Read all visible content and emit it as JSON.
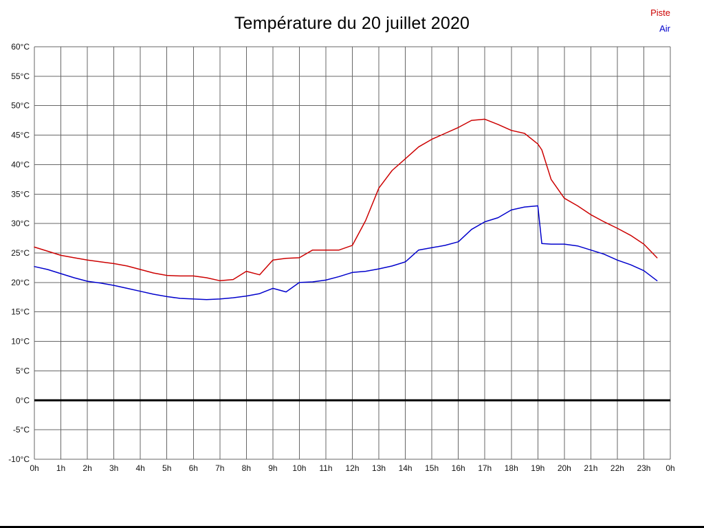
{
  "chart_data": {
    "type": "line",
    "title": "Température du 20 juillet 2020",
    "xlabel": "",
    "ylabel": "",
    "xlim": [
      0,
      24
    ],
    "ylim": [
      -10,
      60
    ],
    "grid": true,
    "legend_position": "top-right",
    "grid_color": "#666666",
    "zero_line": {
      "value": 0,
      "color": "#000000",
      "width": 3
    },
    "y_tick_values": [
      60,
      55,
      50,
      45,
      40,
      35,
      30,
      25,
      20,
      15,
      10,
      5,
      0,
      -5,
      -10
    ],
    "y_tick_labels": [
      "60°C",
      "55°C",
      "50°C",
      "45°C",
      "40°C",
      "35°C",
      "30°C",
      "25°C",
      "20°C",
      "15°C",
      "10°C",
      "5°C",
      "0°C",
      "-5°C",
      "-10°C"
    ],
    "x_tick_labels": [
      "0h",
      "1h",
      "2h",
      "3h",
      "4h",
      "5h",
      "6h",
      "7h",
      "8h",
      "9h",
      "10h",
      "11h",
      "12h",
      "13h",
      "14h",
      "15h",
      "16h",
      "17h",
      "18h",
      "19h",
      "20h",
      "21h",
      "22h",
      "23h",
      "0h"
    ],
    "x": [
      0,
      0.5,
      1,
      1.5,
      2,
      2.5,
      3,
      3.5,
      4,
      4.5,
      5,
      5.5,
      6,
      6.5,
      7,
      7.5,
      8,
      8.5,
      9,
      9.5,
      10,
      10.5,
      11,
      11.5,
      12,
      12.5,
      13,
      13.5,
      14,
      14.5,
      15,
      15.5,
      16,
      16.5,
      17,
      17.5,
      18,
      18.5,
      19,
      19.15,
      19.5,
      20,
      20.5,
      21,
      21.5,
      22,
      22.5,
      23,
      23.5
    ],
    "series": [
      {
        "name": "Piste",
        "color": "#cc0000",
        "values": [
          26,
          25.3,
          24.6,
          24.2,
          23.8,
          23.5,
          23.2,
          22.8,
          22.2,
          21.6,
          21.2,
          21.1,
          21.1,
          20.8,
          20.3,
          20.5,
          21.9,
          21.3,
          23.8,
          24.1,
          24.2,
          25.5,
          25.5,
          25.5,
          26.3,
          30.5,
          36,
          39,
          41,
          43,
          44.3,
          45.3,
          46.3,
          47.5,
          47.7,
          46.8,
          45.8,
          45.3,
          43.5,
          42.5,
          37.5,
          34.3,
          33,
          31.5,
          30.3,
          29.2,
          28,
          26.5,
          24.2
        ]
      },
      {
        "name": "Air",
        "color": "#0000cc",
        "values": [
          22.7,
          22.2,
          21.5,
          20.8,
          20.2,
          19.9,
          19.5,
          19,
          18.5,
          18,
          17.6,
          17.3,
          17.2,
          17.1,
          17.2,
          17.4,
          17.7,
          18.1,
          19,
          18.4,
          20,
          20.1,
          20.4,
          21,
          21.7,
          21.9,
          22.3,
          22.8,
          23.5,
          25.5,
          25.9,
          26.3,
          26.9,
          29,
          30.3,
          31,
          32.3,
          32.8,
          33,
          26.6,
          26.5,
          26.5,
          26.2,
          25.5,
          24.8,
          23.8,
          23,
          22,
          20.3
        ]
      }
    ]
  }
}
